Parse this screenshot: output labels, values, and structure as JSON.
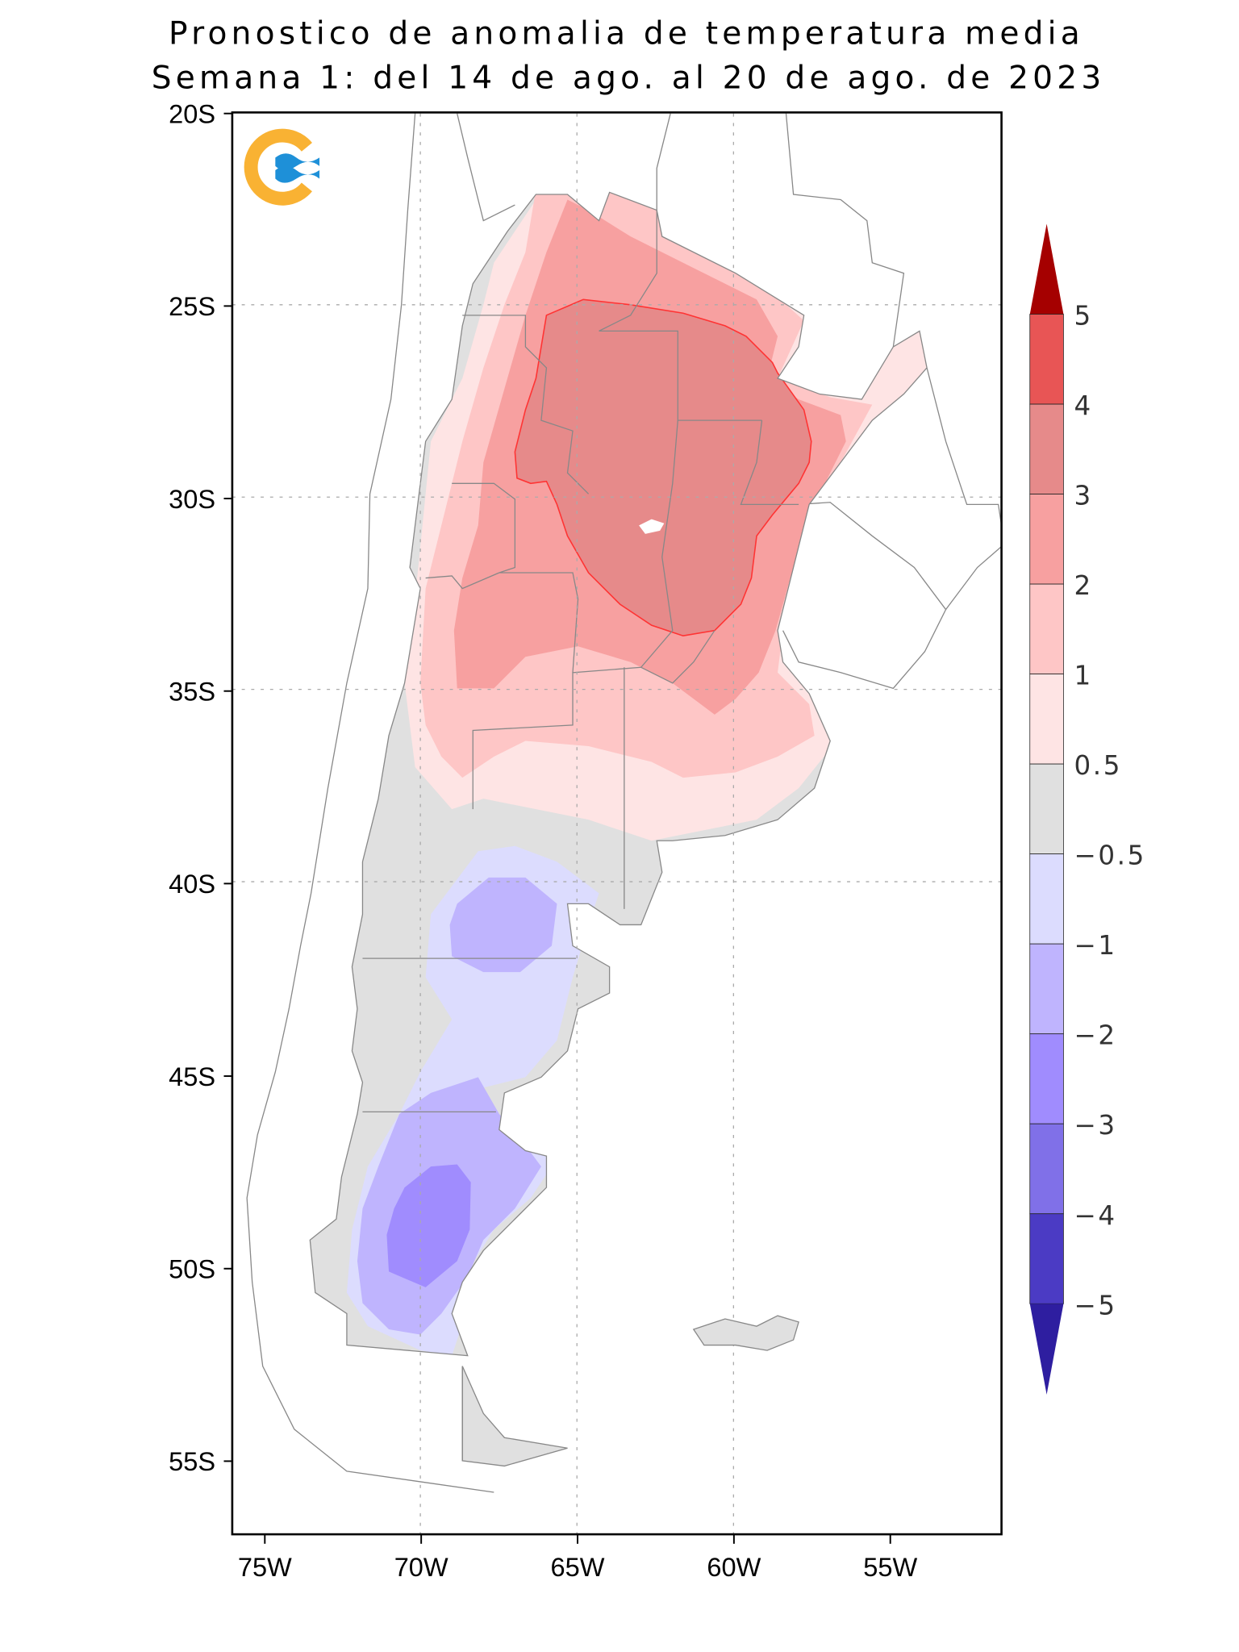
{
  "title": {
    "line1": "Pronostico de anomalia de temperatura media",
    "line2": "Semana 1: del 14 de ago. al 20 de ago. de 2023"
  },
  "map": {
    "lat_ticks": [
      "20S",
      "25S",
      "30S",
      "35S",
      "40S",
      "45S",
      "50S",
      "55S"
    ],
    "lon_ticks": [
      "75W",
      "70W",
      "65W",
      "60W",
      "55W"
    ],
    "logo": "orange-blue wave logo",
    "land_color": "#E0E0E0",
    "contour_line_color": "#FF3333"
  },
  "colorbar": {
    "labels": [
      "5",
      "4",
      "3",
      "2",
      "1",
      "0.5",
      "−0.5",
      "−1",
      "−2",
      "−3",
      "−4",
      "−5"
    ],
    "colors": [
      "#A50000",
      "#E85555",
      "#E68A8A",
      "#F7A0A0",
      "#FEC6C6",
      "#FEE4E4",
      "#E0E0E0",
      "#DCDCFE",
      "#BFB4FE",
      "#A08CFE",
      "#8070E8",
      "#4B3BC4",
      "#2E1EA0"
    ]
  }
}
